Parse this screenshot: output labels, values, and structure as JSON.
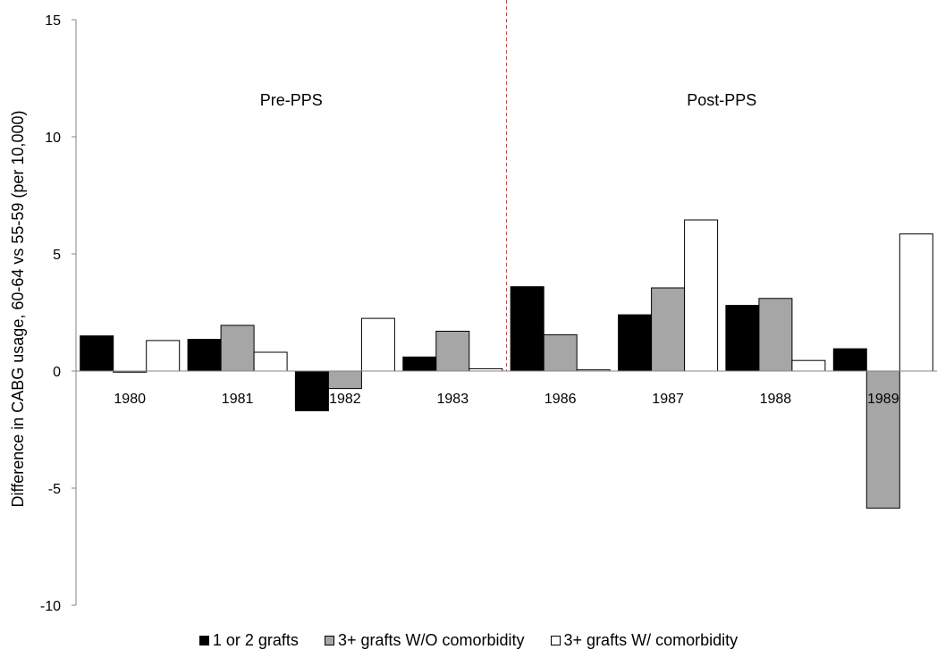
{
  "chart_data": {
    "type": "bar",
    "title": "",
    "xlabel": "",
    "ylabel": "Difference in CABG usage, 60-64 vs 55-59 (per 10,000)",
    "ylim": [
      -10,
      15
    ],
    "yticks": [
      "15",
      "10",
      "5",
      "0",
      "-5",
      "-10"
    ],
    "grid": false,
    "legend_position": "bottom",
    "categories": [
      "1980",
      "1981",
      "1982",
      "1983",
      "1986",
      "1987",
      "1988",
      "1989"
    ],
    "series": [
      {
        "name": "1 or 2 grafts",
        "color": "#000000",
        "values": [
          1.5,
          1.35,
          -1.7,
          0.6,
          3.6,
          2.4,
          2.8,
          0.95
        ]
      },
      {
        "name": "3+ grafts W/O comorbidity",
        "color": "#a6a6a6",
        "values": [
          -0.05,
          1.95,
          -0.75,
          1.7,
          1.55,
          3.55,
          3.1,
          -5.85
        ]
      },
      {
        "name": "3+ grafts W/ comorbidity",
        "color": "#ffffff",
        "values": [
          1.3,
          0.8,
          2.25,
          0.1,
          0.05,
          6.45,
          0.45,
          5.85
        ]
      }
    ],
    "annotations": {
      "pre_label": "Pre-PPS",
      "post_label": "Post-PPS",
      "divider_after_category": "1983",
      "divider_style": "dashed red vertical line"
    }
  }
}
